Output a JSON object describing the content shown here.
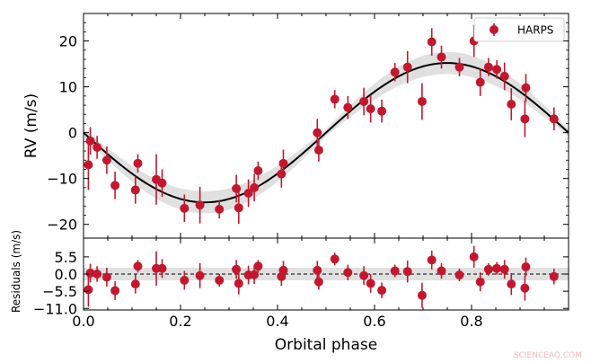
{
  "chart_data": {
    "type": "scatter",
    "xlabel": "Orbital phase",
    "top_panel": {
      "ylabel": "RV (m/s)",
      "xlim": [
        0.0,
        1.0
      ],
      "ylim": [
        -23,
        26
      ],
      "yticks": [
        -20,
        -10,
        0,
        10,
        20
      ],
      "ytick_labels": [
        "−20",
        "−10",
        "0",
        "10",
        "20"
      ],
      "model": {
        "amplitude": 15.2,
        "phase_of_max": 0.75,
        "offset": 0.0,
        "band_width": 1.6
      },
      "legend": {
        "label": "HARPS",
        "placement": "top-right"
      }
    },
    "bottom_panel": {
      "ylabel": "Residuals (m/s)",
      "ylim": [
        -11.5,
        11.5
      ],
      "yticks": [
        -11.0,
        -5.5,
        0.0,
        5.5
      ],
      "ytick_labels": [
        "−11.0",
        "−5.5",
        "0.0",
        "5.5"
      ],
      "band_width": 2.0
    },
    "xticks": [
      0.0,
      0.2,
      0.4,
      0.6,
      0.8
    ],
    "xtick_labels": [
      "0.0",
      "0.2",
      "0.4",
      "0.6",
      "0.8"
    ],
    "series": [
      {
        "name": "HARPS",
        "color": "#c0192f",
        "points": [
          {
            "x": 0.01,
            "y": -7.0,
            "err": 5.5,
            "res": -5.0
          },
          {
            "x": 0.014,
            "y": -1.8,
            "err": 3.0,
            "res": 0.3
          },
          {
            "x": 0.028,
            "y": -3.2,
            "err": 2.5,
            "res": 0.0
          },
          {
            "x": 0.048,
            "y": -6.0,
            "err": 3.0,
            "res": -1.0
          },
          {
            "x": 0.065,
            "y": -11.5,
            "err": 3.0,
            "res": -5.3
          },
          {
            "x": 0.107,
            "y": -12.5,
            "err": 3.0,
            "res": -3.2
          },
          {
            "x": 0.112,
            "y": -6.7,
            "err": 2.0,
            "res": 2.5
          },
          {
            "x": 0.15,
            "y": -10.2,
            "err": 5.5,
            "res": 1.8
          },
          {
            "x": 0.162,
            "y": -11.0,
            "err": 3.0,
            "res": 1.8
          },
          {
            "x": 0.208,
            "y": -16.5,
            "err": 3.0,
            "res": -2.0
          },
          {
            "x": 0.24,
            "y": -15.8,
            "err": 4.0,
            "res": -0.5
          },
          {
            "x": 0.28,
            "y": -16.7,
            "err": 2.0,
            "res": -2.0
          },
          {
            "x": 0.315,
            "y": -12.2,
            "err": 3.0,
            "res": 1.5
          },
          {
            "x": 0.32,
            "y": -16.4,
            "err": 3.5,
            "res": -3.0
          },
          {
            "x": 0.34,
            "y": -13.2,
            "err": 3.0,
            "res": -0.3
          },
          {
            "x": 0.352,
            "y": -12.0,
            "err": 3.0,
            "res": -0.2
          },
          {
            "x": 0.36,
            "y": -8.3,
            "err": 2.0,
            "res": 2.5
          },
          {
            "x": 0.408,
            "y": -9.0,
            "err": 3.0,
            "res": -0.8
          },
          {
            "x": 0.412,
            "y": -6.7,
            "err": 3.0,
            "res": 1.2
          },
          {
            "x": 0.482,
            "y": 0.0,
            "err": 3.0,
            "res": 1.2
          },
          {
            "x": 0.485,
            "y": -3.8,
            "err": 2.5,
            "res": -2.5
          },
          {
            "x": 0.518,
            "y": 7.3,
            "err": 2.0,
            "res": 4.8
          },
          {
            "x": 0.545,
            "y": 5.5,
            "err": 2.5,
            "res": 0.5
          },
          {
            "x": 0.578,
            "y": 6.8,
            "err": 3.0,
            "res": -0.5
          },
          {
            "x": 0.592,
            "y": 5.2,
            "err": 3.0,
            "res": -3.0
          },
          {
            "x": 0.615,
            "y": 4.7,
            "err": 2.5,
            "res": -5.2
          },
          {
            "x": 0.642,
            "y": 13.2,
            "err": 2.0,
            "res": 1.0
          },
          {
            "x": 0.668,
            "y": 14.3,
            "err": 3.5,
            "res": 0.8
          },
          {
            "x": 0.698,
            "y": 6.8,
            "err": 4.0,
            "res": -6.8
          },
          {
            "x": 0.718,
            "y": 19.8,
            "err": 3.0,
            "res": 4.5
          },
          {
            "x": 0.738,
            "y": 16.5,
            "err": 2.5,
            "res": 1.0
          },
          {
            "x": 0.775,
            "y": 14.3,
            "err": 2.0,
            "res": -0.3
          },
          {
            "x": 0.805,
            "y": 20.0,
            "err": 3.5,
            "res": 5.5
          },
          {
            "x": 0.818,
            "y": 11.0,
            "err": 3.0,
            "res": -2.5
          },
          {
            "x": 0.835,
            "y": 14.3,
            "err": 2.0,
            "res": 1.5
          },
          {
            "x": 0.852,
            "y": 13.8,
            "err": 2.0,
            "res": 1.8
          },
          {
            "x": 0.868,
            "y": 12.3,
            "err": 3.0,
            "res": 1.5
          },
          {
            "x": 0.882,
            "y": 6.2,
            "err": 3.5,
            "res": -3.2
          },
          {
            "x": 0.91,
            "y": 3.0,
            "err": 4.0,
            "res": -4.5
          },
          {
            "x": 0.912,
            "y": 9.8,
            "err": 3.0,
            "res": 2.3
          },
          {
            "x": 0.97,
            "y": 3.0,
            "err": 2.5,
            "res": -0.8
          }
        ]
      }
    ]
  },
  "watermark": "SCIENCEAQ.COM"
}
